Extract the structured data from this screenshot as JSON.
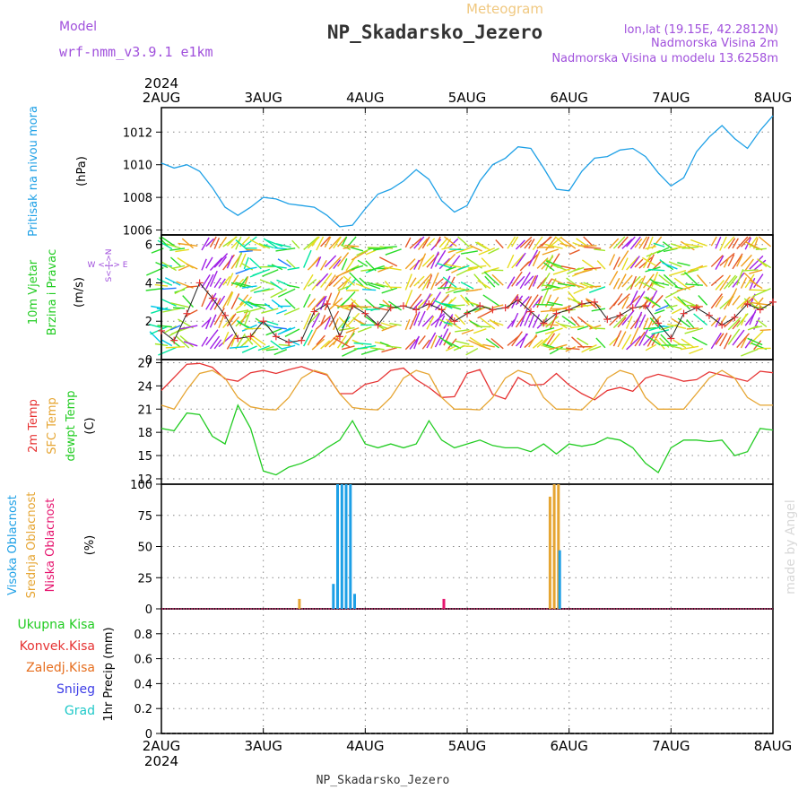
{
  "header": {
    "model_label": "Model",
    "model_name": "wrf-nmm_v3.9.1 e1km",
    "product": "Meteogram",
    "station": "NP_Skadarsko_Jezero",
    "coords": "lon,lat (19.15E, 42.2812N)",
    "elevation": "Nadmorska Visina 2m",
    "model_elevation": "Nadmorska Visina u modelu 13.6258m",
    "footer_station": "NP_Skadarsko_Jezero",
    "watermark": "made by Angel"
  },
  "colors": {
    "pressure": "#1ea0e6",
    "temp2m": "#e63232",
    "sfc": "#e6a532",
    "dewpt": "#22cc22",
    "cloud_high": "#1ea0e6",
    "cloud_mid": "#e6a532",
    "cloud_low": "#e6146e",
    "violet": "#a050dc"
  },
  "chart_data": {
    "type": "line",
    "time_axis": {
      "year": "2024",
      "ticks": [
        "2AUG",
        "3AUG",
        "4AUG",
        "5AUG",
        "6AUG",
        "7AUG",
        "8AUG"
      ],
      "start": "2024-08-02T00",
      "end": "2024-08-08T00"
    },
    "panels": [
      {
        "id": "pressure",
        "ylabel_name": "Pritisak na nivou mora",
        "ylabel_unit": "(hPa)",
        "ylim": [
          1005.7,
          1013.5
        ],
        "yticks": [
          1006,
          1008,
          1010,
          1012
        ],
        "series": [
          {
            "key": "pressure",
            "x": [
              0,
              3,
              6,
              9,
              12,
              15,
              18,
              21,
              24,
              27,
              30,
              33,
              36,
              39,
              42,
              45,
              48,
              51,
              54,
              57,
              60,
              63,
              66,
              69,
              72,
              75,
              78,
              81,
              84,
              87,
              90,
              93,
              96,
              99,
              102,
              105,
              108,
              111,
              114,
              117,
              120,
              123,
              126,
              129,
              132,
              135,
              138,
              141,
              144
            ],
            "y": [
              1010.1,
              1009.8,
              1010.0,
              1009.6,
              1008.6,
              1007.4,
              1006.9,
              1007.4,
              1008.0,
              1007.9,
              1007.6,
              1007.5,
              1007.4,
              1006.9,
              1006.2,
              1006.3,
              1007.3,
              1008.2,
              1008.5,
              1009.0,
              1009.7,
              1009.1,
              1007.8,
              1007.1,
              1007.5,
              1009.0,
              1010.0,
              1010.4,
              1011.1,
              1011.0,
              1009.8,
              1008.5,
              1008.4,
              1009.6,
              1010.4,
              1010.5,
              1010.9,
              1011.0,
              1010.5,
              1009.5,
              1008.7,
              1009.2,
              1010.8,
              1011.7,
              1012.4,
              1011.6,
              1011.0,
              1012.1,
              1013.0
            ]
          }
        ]
      },
      {
        "id": "wind",
        "ylabel_name": "10m Vjetar",
        "ylabel_name2": "Brzina i Pravac",
        "ylabel_unit": "(m/s)",
        "compass": "W <-|-> E",
        "compass_ns": "S<-|->N",
        "ylim": [
          0,
          6.5
        ],
        "yticks": [
          0,
          2,
          4,
          6
        ],
        "series": [
          {
            "key": "wind_speed",
            "x": [
              0,
              3,
              6,
              9,
              12,
              15,
              18,
              21,
              24,
              27,
              30,
              33,
              36,
              39,
              42,
              45,
              48,
              51,
              54,
              57,
              60,
              63,
              66,
              69,
              72,
              75,
              78,
              81,
              84,
              87,
              90,
              93,
              96,
              99,
              102,
              105,
              108,
              111,
              114,
              117,
              120,
              123,
              126,
              129,
              132,
              135,
              138,
              141,
              144
            ],
            "y": [
              1.5,
              1.0,
              2.4,
              4.0,
              3.2,
              2.3,
              1.1,
              1.2,
              2.0,
              1.2,
              0.9,
              1.0,
              2.5,
              2.9,
              1.2,
              2.8,
              2.4,
              1.8,
              2.7,
              2.8,
              2.6,
              2.9,
              2.6,
              2.0,
              2.4,
              2.8,
              2.6,
              2.7,
              3.1,
              2.5,
              1.9,
              2.4,
              2.6,
              2.9,
              3.0,
              2.1,
              2.3,
              2.7,
              2.8,
              1.9,
              1.1,
              2.4,
              2.7,
              2.3,
              1.8,
              2.2,
              2.9,
              2.6,
              3.0
            ]
          }
        ]
      },
      {
        "id": "temperature",
        "ylabel_name": "2m Temp",
        "ylabel_name2": "SFC Temp",
        "ylabel_name3": "dewpt Temp",
        "ylabel_unit": "(C)",
        "ylim": [
          11.3,
          27.4
        ],
        "yticks": [
          12,
          15,
          18,
          21,
          24,
          27
        ],
        "series": [
          {
            "key": "temp2m",
            "x": [
              0,
              3,
              6,
              9,
              12,
              15,
              18,
              21,
              24,
              27,
              30,
              33,
              36,
              39,
              42,
              45,
              48,
              51,
              54,
              57,
              60,
              63,
              66,
              69,
              72,
              75,
              78,
              81,
              84,
              87,
              90,
              93,
              96,
              99,
              102,
              105,
              108,
              111,
              114,
              117,
              120,
              123,
              126,
              129,
              132,
              135,
              138,
              141,
              144
            ],
            "y": [
              23.4,
              25.1,
              26.8,
              26.9,
              26.4,
              24.9,
              24.6,
              25.7,
              26.0,
              25.6,
              26.1,
              26.5,
              25.9,
              25.4,
              23.0,
              23.0,
              24.2,
              24.6,
              26.0,
              26.3,
              24.8,
              23.8,
              22.5,
              22.6,
              25.6,
              26.1,
              22.9,
              22.3,
              25.1,
              24.1,
              24.2,
              25.6,
              24.1,
              23.0,
              22.2,
              23.4,
              23.8,
              23.3,
              25.0,
              25.5,
              25.1,
              24.6,
              24.8,
              25.8,
              25.4,
              25.0,
              24.6,
              25.9,
              25.7
            ]
          },
          {
            "key": "sfc",
            "x": [
              0,
              3,
              6,
              9,
              12,
              15,
              18,
              21,
              24,
              27,
              30,
              33,
              36,
              39,
              42,
              45,
              48,
              51,
              54,
              57,
              60,
              63,
              66,
              69,
              72,
              75,
              78,
              81,
              84,
              87,
              90,
              93,
              96,
              99,
              102,
              105,
              108,
              111,
              114,
              117,
              120,
              123,
              126,
              129,
              132,
              135,
              138,
              141,
              144
            ],
            "y": [
              21.5,
              21.0,
              23.5,
              25.6,
              26.0,
              25.0,
              22.5,
              21.3,
              21.0,
              20.9,
              22.5,
              25.0,
              26.0,
              25.5,
              23.0,
              21.2,
              21.0,
              20.9,
              22.5,
              25.0,
              26.0,
              25.5,
              22.5,
              21.0,
              21.0,
              20.9,
              22.5,
              25.0,
              26.0,
              25.5,
              22.5,
              21.0,
              21.0,
              20.9,
              22.5,
              25.0,
              26.0,
              25.5,
              22.5,
              21.0,
              21.0,
              21.0,
              23.0,
              25.0,
              26.0,
              25.0,
              22.5,
              21.5,
              21.5
            ]
          },
          {
            "key": "dewpt",
            "x": [
              0,
              3,
              6,
              9,
              12,
              15,
              18,
              21,
              24,
              27,
              30,
              33,
              36,
              39,
              42,
              45,
              48,
              51,
              54,
              57,
              60,
              63,
              66,
              69,
              72,
              75,
              78,
              81,
              84,
              87,
              90,
              93,
              96,
              99,
              102,
              105,
              108,
              111,
              114,
              117,
              120,
              123,
              126,
              129,
              132,
              135,
              138,
              141,
              144
            ],
            "y": [
              18.5,
              18.2,
              20.5,
              20.3,
              17.5,
              16.5,
              21.5,
              18.5,
              13.0,
              12.5,
              13.5,
              14.0,
              14.8,
              16.0,
              17.0,
              19.5,
              16.5,
              16.0,
              16.5,
              16.0,
              16.5,
              19.5,
              17.0,
              16.0,
              16.5,
              17.0,
              16.3,
              16.0,
              16.0,
              15.5,
              16.5,
              15.2,
              16.5,
              16.2,
              16.5,
              17.3,
              17.0,
              16.0,
              14.0,
              12.8,
              16.0,
              17.0,
              17.0,
              16.8,
              17.0,
              15.0,
              15.5,
              18.5,
              18.3
            ]
          }
        ]
      },
      {
        "id": "cloud",
        "ylabel_name": "Visoka Oblacnost",
        "ylabel_name2": "Srednja Oblacnost",
        "ylabel_name3": "Niska Oblacnost",
        "ylabel_unit": "(%)",
        "ylim": [
          0,
          100
        ],
        "yticks": [
          0,
          25,
          50,
          75,
          100
        ],
        "bars": [
          {
            "key": "cloud_mid",
            "x": 32.5,
            "y": 8
          },
          {
            "key": "cloud_high",
            "x": 40.5,
            "y": 20
          },
          {
            "key": "cloud_high",
            "x": 41.5,
            "y": 100
          },
          {
            "key": "cloud_high",
            "x": 42.5,
            "y": 100
          },
          {
            "key": "cloud_high",
            "x": 43.5,
            "y": 100
          },
          {
            "key": "cloud_high",
            "x": 44.5,
            "y": 100
          },
          {
            "key": "cloud_high",
            "x": 45.5,
            "y": 12
          },
          {
            "key": "cloud_low",
            "x": 66.5,
            "y": 8
          },
          {
            "key": "cloud_mid",
            "x": 91.5,
            "y": 90
          },
          {
            "key": "cloud_mid",
            "x": 92.5,
            "y": 100
          },
          {
            "key": "cloud_mid",
            "x": 93.5,
            "y": 100
          },
          {
            "key": "cloud_high",
            "x": 93.8,
            "y": 47
          }
        ]
      },
      {
        "id": "precip",
        "ylabel_name": "1hr Precip (mm)",
        "legend": [
          "Ukupna Kisa",
          "Konvek.Kisa",
          "Zaledj.Kisa",
          "Snijeg",
          "Grad"
        ],
        "legend_colors": [
          "#22cc22",
          "#e63232",
          "#e66e1e",
          "#3c3ce6",
          "#1ec8c8"
        ],
        "ylim": [
          0,
          1
        ],
        "yticks": [
          0,
          0.2,
          0.4,
          0.6,
          0.8
        ],
        "ytick_labels": [
          "0",
          "0.2",
          "0.4",
          "0.6",
          "0.8"
        ]
      }
    ]
  }
}
